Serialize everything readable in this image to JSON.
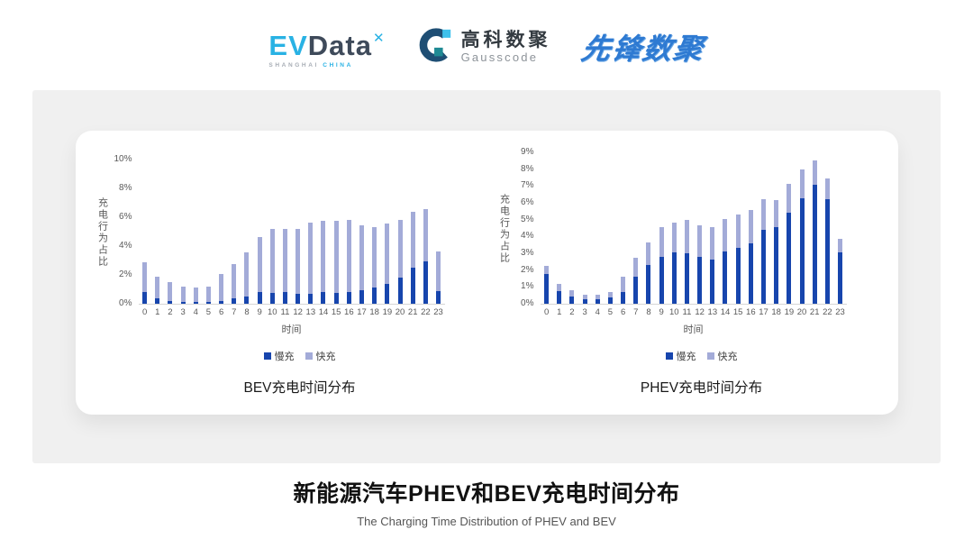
{
  "header": {
    "evdata": {
      "ev": "EV",
      "data": "Data",
      "sup": "✕",
      "sub_left": "SHANGHAI",
      "sub_right": "CHINA"
    },
    "gausscode": {
      "cn": "高科数聚",
      "en": "Gausscode"
    },
    "xianfeng": {
      "text": "先锋数聚"
    }
  },
  "colors": {
    "slow": "#1745ad",
    "fast": "#a3abd8",
    "axis": "#d6d6d6"
  },
  "chart_data": [
    {
      "type": "bar",
      "stacked": true,
      "title": "BEV充电时间分布",
      "ylabel": "充电行为占比",
      "xlabel": "时间",
      "ymax": 10,
      "ytick_values": [
        0,
        2,
        4,
        6,
        8,
        10
      ],
      "ytick_labels": [
        "0%",
        "2%",
        "4%",
        "6%",
        "8%",
        "10%"
      ],
      "categories": [
        "0",
        "1",
        "2",
        "3",
        "4",
        "5",
        "6",
        "7",
        "8",
        "9",
        "10",
        "11",
        "12",
        "13",
        "14",
        "15",
        "16",
        "17",
        "18",
        "19",
        "20",
        "21",
        "22",
        "23"
      ],
      "series": [
        {
          "name": "慢充",
          "color": "#1745ad",
          "values": [
            0.8,
            0.35,
            0.2,
            0.12,
            0.1,
            0.12,
            0.17,
            0.35,
            0.5,
            0.8,
            0.75,
            0.8,
            0.7,
            0.7,
            0.8,
            0.75,
            0.8,
            0.95,
            1.15,
            1.4,
            1.8,
            2.5,
            2.95,
            0.9
          ]
        },
        {
          "name": "快充",
          "color": "#a3abd8",
          "values": [
            2.1,
            1.55,
            1.3,
            1.05,
            1.0,
            1.05,
            1.9,
            2.4,
            3.05,
            3.85,
            4.45,
            4.4,
            4.5,
            4.9,
            4.95,
            5.0,
            5.0,
            4.5,
            4.15,
            4.15,
            4.0,
            3.85,
            3.6,
            2.7
          ]
        }
      ],
      "legend_position": "bottom",
      "grid": false
    },
    {
      "type": "bar",
      "stacked": true,
      "title": "PHEV充电时间分布",
      "ylabel": "充电行为占比",
      "xlabel": "时间",
      "ymax": 9,
      "ytick_values": [
        0,
        1,
        2,
        3,
        4,
        5,
        6,
        7,
        8,
        9
      ],
      "ytick_labels": [
        "0%",
        "1%",
        "2%",
        "3%",
        "4%",
        "5%",
        "6%",
        "7%",
        "8%",
        "9%"
      ],
      "categories": [
        "0",
        "1",
        "2",
        "3",
        "4",
        "5",
        "6",
        "7",
        "8",
        "9",
        "10",
        "11",
        "12",
        "13",
        "14",
        "15",
        "16",
        "17",
        "18",
        "19",
        "20",
        "21",
        "22",
        "23"
      ],
      "series": [
        {
          "name": "慢充",
          "color": "#1745ad",
          "values": [
            1.75,
            0.75,
            0.45,
            0.25,
            0.25,
            0.35,
            0.7,
            1.6,
            2.3,
            2.8,
            3.05,
            3.0,
            2.8,
            2.65,
            3.1,
            3.3,
            3.6,
            4.4,
            4.55,
            5.4,
            6.25,
            7.05,
            6.2,
            3.05
          ]
        },
        {
          "name": "快充",
          "color": "#a3abd8",
          "values": [
            0.5,
            0.45,
            0.35,
            0.3,
            0.3,
            0.35,
            0.9,
            1.15,
            1.35,
            1.75,
            1.75,
            2.0,
            1.85,
            1.9,
            1.95,
            2.0,
            1.95,
            1.8,
            1.6,
            1.75,
            1.75,
            1.45,
            1.25,
            0.8
          ]
        }
      ],
      "legend_position": "bottom",
      "grid": false
    }
  ],
  "footer": {
    "title": "新能源汽车PHEV和BEV充电时间分布",
    "subtitle": "The Charging Time Distribution of PHEV and BEV"
  }
}
